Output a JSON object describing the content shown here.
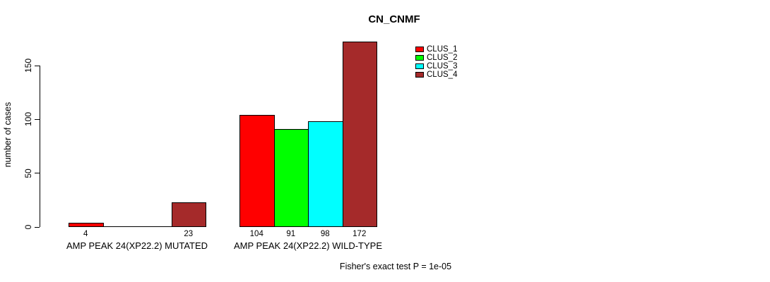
{
  "chart_data": {
    "type": "bar",
    "title": "CN_CNMF",
    "ylabel": "number of cases",
    "xlabel": "",
    "ylim": [
      0,
      172
    ],
    "yticks": [
      0,
      50,
      100,
      150
    ],
    "grid": false,
    "legend_position": "top-right",
    "categories": [
      "AMP PEAK 24(XP22.2) MUTATED",
      "AMP PEAK 24(XP22.2) WILD-TYPE"
    ],
    "series": [
      {
        "name": "CLUS_1",
        "color": "#FF0000",
        "values": [
          4,
          104
        ]
      },
      {
        "name": "CLUS_2",
        "color": "#00FF00",
        "values": [
          0,
          91
        ]
      },
      {
        "name": "CLUS_3",
        "color": "#00FFFF",
        "values": [
          0,
          98
        ]
      },
      {
        "name": "CLUS_4",
        "color": "#A52A2A",
        "values": [
          23,
          172
        ]
      }
    ],
    "bar_value_labels": [
      [
        "4",
        "",
        "",
        "23"
      ],
      [
        "104",
        "91",
        "98",
        "172"
      ]
    ],
    "annotation": "Fisher's exact test P = 1e-05"
  }
}
